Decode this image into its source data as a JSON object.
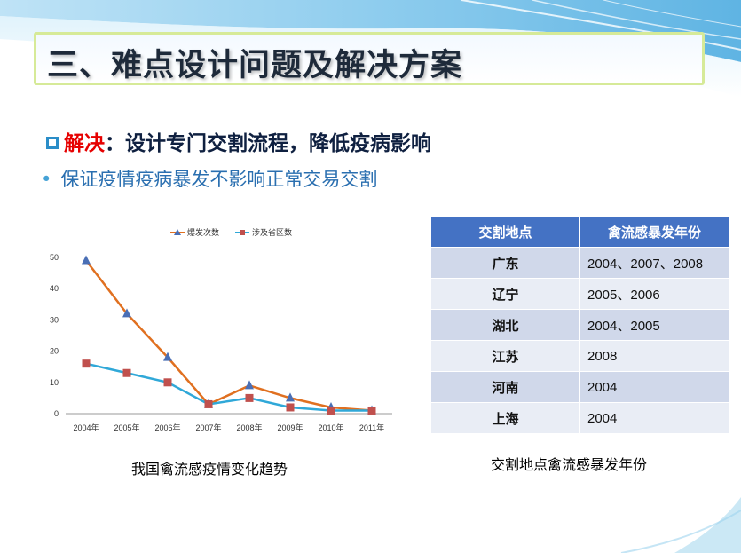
{
  "slide": {
    "title": "三、难点设计问题及解决方案",
    "line1_highlight": "解决",
    "line1_rest": "：设计专门交割流程，降低疫病影响",
    "line2": "保证疫情疫病暴发不影响正常交易交割",
    "bullet": "•",
    "chart_caption": "我国禽流感疫情变化趋势",
    "table_caption": "交割地点禽流感暴发年份",
    "colors": {
      "accent_blue": "#4472c4",
      "highlight_red": "#e60000",
      "line_orange": "#e07020",
      "line_blue": "#30a8d8",
      "marker_blue": "#4a6fb5",
      "marker_red": "#c0504d"
    }
  },
  "table": {
    "headers": [
      "交割地点",
      "禽流感暴发年份"
    ],
    "rows": [
      [
        "广东",
        "2004、2007、2008"
      ],
      [
        "辽宁",
        "2005、2006"
      ],
      [
        "湖北",
        "2004、2005"
      ],
      [
        "江苏",
        "2008"
      ],
      [
        "河南",
        "2004"
      ],
      [
        "上海",
        "2004"
      ]
    ]
  },
  "chart_data": {
    "type": "line",
    "categories": [
      "2004年",
      "2005年",
      "2006年",
      "2007年",
      "2008年",
      "2009年",
      "2010年",
      "2011年"
    ],
    "series": [
      {
        "name": "爆发次数",
        "values": [
          49,
          32,
          18,
          3,
          9,
          5,
          2,
          1
        ],
        "color": "#e07020",
        "marker": "triangle",
        "marker_color": "#4a6fb5"
      },
      {
        "name": "涉及省区数",
        "values": [
          16,
          13,
          10,
          3,
          5,
          2,
          1,
          1
        ],
        "color": "#30a8d8",
        "marker": "square",
        "marker_color": "#c0504d"
      }
    ],
    "ylim": [
      0,
      50
    ],
    "yticks": [
      0,
      10,
      20,
      30,
      40,
      50
    ],
    "legend": "top",
    "grid": false
  }
}
